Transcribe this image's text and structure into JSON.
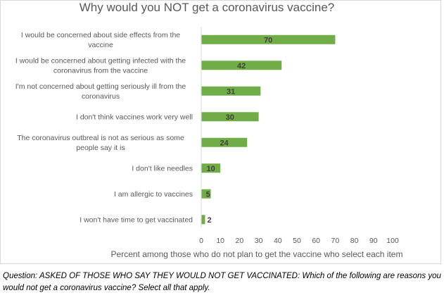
{
  "chart_data": {
    "type": "bar",
    "orientation": "horizontal",
    "title": "Why would you NOT get a coronavirus vaccine?",
    "xlabel": "Percent among those who do not plan to get the vaccine who select each item",
    "ylabel": "",
    "categories": [
      [
        "I would be concerned about side effects from the",
        "vaccine"
      ],
      [
        "I would be concerned about getting infected with the",
        "coronavirus from the vaccine"
      ],
      [
        "I'm not concerned about getting seriously ill from the",
        "coronavirus"
      ],
      [
        "I don't think vaccines work very well"
      ],
      [
        "The coronavirus outbreal is not as serious as some",
        "people say it is"
      ],
      [
        "I don't like needles"
      ],
      [
        "I am allergic to vaccines"
      ],
      [
        "I won't have time to get vaccinated"
      ]
    ],
    "values": [
      70,
      42,
      31,
      30,
      24,
      10,
      5,
      2
    ],
    "xlim": [
      0,
      100
    ],
    "xticks": [
      0,
      10,
      20,
      30,
      40,
      50,
      60,
      70,
      80,
      90,
      100
    ],
    "bar_color": "#70ad47",
    "label_color": "#404040",
    "grid": false,
    "legend": "none"
  },
  "footnote": "Question: ASKED OF THOSE WHO SAY THEY WOULD NOT GET VACCINATED: Which of the following are reasons you would not get a coronavirus vaccine? Select all that apply."
}
